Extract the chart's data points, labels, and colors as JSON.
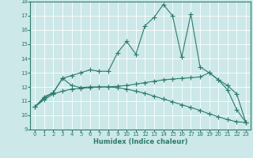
{
  "bg_color": "#cce8e8",
  "grid_color": "#ffffff",
  "line_color": "#2d7a6e",
  "xlabel": "Humidex (Indice chaleur)",
  "xlim": [
    -0.5,
    23.5
  ],
  "ylim": [
    9,
    18
  ],
  "xticks": [
    0,
    1,
    2,
    3,
    4,
    5,
    6,
    7,
    8,
    9,
    10,
    11,
    12,
    13,
    14,
    15,
    16,
    17,
    18,
    19,
    20,
    21,
    22,
    23
  ],
  "yticks": [
    9,
    10,
    11,
    12,
    13,
    14,
    15,
    16,
    17,
    18
  ],
  "curve1_x": [
    0,
    1,
    2,
    3,
    4,
    5,
    6,
    7,
    8,
    9,
    10,
    11,
    12,
    13,
    14,
    15,
    16,
    17,
    18,
    19,
    20,
    21,
    22,
    23
  ],
  "curve1_y": [
    10.6,
    11.3,
    11.6,
    12.6,
    12.8,
    13.0,
    13.2,
    13.1,
    13.1,
    14.4,
    15.2,
    14.3,
    16.3,
    16.9,
    17.8,
    17.0,
    14.1,
    17.1,
    13.4,
    13.0,
    12.5,
    11.8,
    10.4,
    9.5
  ],
  "curve2_x": [
    0,
    1,
    2,
    3,
    4,
    5,
    6,
    7,
    8,
    9,
    10,
    11,
    12,
    13,
    14,
    15,
    16,
    17,
    18,
    19,
    20,
    21,
    22,
    23
  ],
  "curve2_y": [
    10.6,
    11.2,
    11.6,
    12.6,
    12.1,
    11.95,
    12.0,
    12.0,
    12.0,
    12.05,
    12.1,
    12.2,
    12.3,
    12.4,
    12.5,
    12.55,
    12.6,
    12.65,
    12.7,
    13.0,
    12.5,
    12.1,
    11.5,
    9.5
  ],
  "curve3_x": [
    0,
    1,
    2,
    3,
    4,
    5,
    6,
    7,
    8,
    9,
    10,
    11,
    12,
    13,
    14,
    15,
    16,
    17,
    18,
    19,
    20,
    21,
    22,
    23
  ],
  "curve3_y": [
    10.6,
    11.1,
    11.5,
    11.7,
    11.85,
    11.9,
    11.95,
    12.0,
    12.0,
    11.95,
    11.85,
    11.7,
    11.55,
    11.35,
    11.15,
    10.95,
    10.75,
    10.55,
    10.35,
    10.1,
    9.9,
    9.7,
    9.55,
    9.5
  ]
}
